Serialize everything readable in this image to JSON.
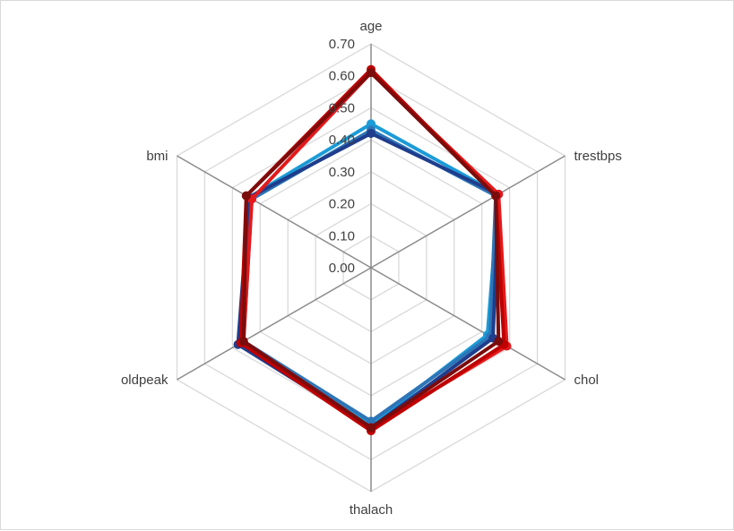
{
  "chart_data": {
    "type": "radar",
    "title": "",
    "axes": [
      "age",
      "trestbps",
      "chol",
      "thalach",
      "oldpeak",
      "bmi"
    ],
    "range": [
      0,
      0.7
    ],
    "tick_step": 0.1,
    "tick_labels": [
      "0.00",
      "0.10",
      "0.20",
      "0.30",
      "0.40",
      "0.50",
      "0.60",
      "0.70"
    ],
    "grid": true,
    "legend": "none",
    "series": [
      {
        "color": "#1b9bd7",
        "values": [
          0.45,
          0.46,
          0.42,
          0.49,
          0.47,
          0.44
        ]
      },
      {
        "color": "#2e75b6",
        "values": [
          0.43,
          0.45,
          0.43,
          0.48,
          0.46,
          0.43
        ]
      },
      {
        "color": "#1f3d8c",
        "values": [
          0.42,
          0.46,
          0.44,
          0.5,
          0.48,
          0.44
        ]
      },
      {
        "color": "#e31a1c",
        "values": [
          0.61,
          0.46,
          0.49,
          0.5,
          0.46,
          0.43
        ]
      },
      {
        "color": "#c00000",
        "values": [
          0.62,
          0.45,
          0.48,
          0.51,
          0.47,
          0.45
        ]
      },
      {
        "color": "#7b0c0c",
        "values": [
          0.61,
          0.45,
          0.46,
          0.5,
          0.46,
          0.45
        ]
      }
    ]
  }
}
